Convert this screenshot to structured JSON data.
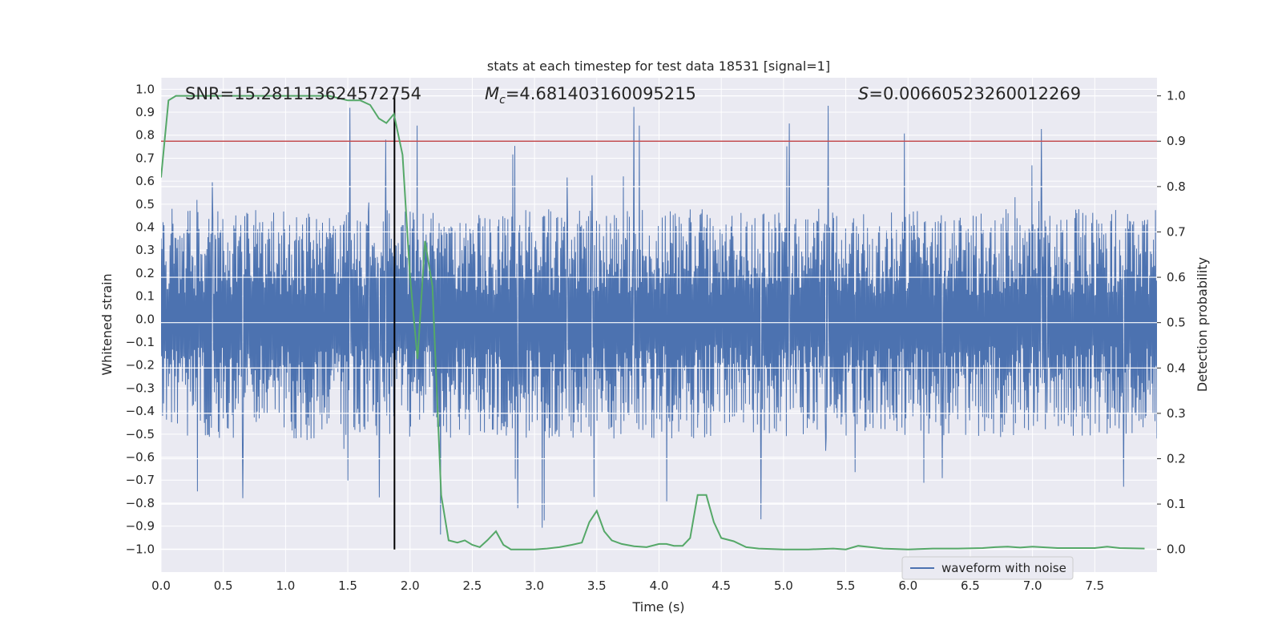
{
  "chart_data": {
    "type": "line",
    "title": "stats at each timestep for test data 18531 [signal=1]",
    "xlabel": "Time (s)",
    "ylabel_left": "Whitened strain",
    "ylabel_right": "Detection probability",
    "xlim": [
      0.0,
      8.0
    ],
    "ylim_left": [
      -1.1,
      1.05
    ],
    "ylim_right": [
      -0.05,
      1.04
    ],
    "x_ticks": [
      "0.0",
      "0.5",
      "1.0",
      "1.5",
      "2.0",
      "2.5",
      "3.0",
      "3.5",
      "4.0",
      "4.5",
      "5.0",
      "5.5",
      "6.0",
      "6.5",
      "7.0",
      "7.5"
    ],
    "y_left_ticks": [
      "1.0",
      "0.9",
      "0.8",
      "0.7",
      "0.6",
      "0.5",
      "0.4",
      "0.3",
      "0.2",
      "0.1",
      "0.0",
      "-0.1",
      "-0.2",
      "-0.3",
      "-0.4",
      "-0.5",
      "-0.6",
      "-0.7",
      "-0.8",
      "-0.9",
      "-1.0"
    ],
    "y_right_ticks": [
      "1.0",
      "0.9",
      "0.8",
      "0.7",
      "0.6",
      "0.5",
      "0.4",
      "0.3",
      "0.2",
      "0.1",
      "0.0"
    ],
    "annotations": {
      "snr": "SNR=15.281113624572754",
      "mc_symbol": "M",
      "mc_sub": "c",
      "mc_value": "=4.681403160095215",
      "s_symbol": "S",
      "s_value": "=0.00660523260012269"
    },
    "threshold_probability": 0.9,
    "marker_time": 1.875,
    "legend": [
      {
        "label": "waveform with noise",
        "color": "#4c72b0"
      }
    ],
    "waveform": {
      "name": "waveform with noise",
      "color": "#4c72b0",
      "t_start": 0.0,
      "t_end": 8.0,
      "n_samples": 2000,
      "band_max": 0.3,
      "band_min": -0.4,
      "peak_max": 0.95,
      "peak_min": -0.96
    },
    "probability_series": {
      "name": "detection probability",
      "color": "#55a868",
      "x": [
        0.0,
        0.06,
        0.12,
        0.25,
        0.5,
        0.75,
        1.0,
        1.2,
        1.35,
        1.5,
        1.6,
        1.68,
        1.75,
        1.81,
        1.87,
        1.94,
        2.0,
        2.06,
        2.12,
        2.18,
        2.25,
        2.31,
        2.38,
        2.44,
        2.5,
        2.56,
        2.62,
        2.69,
        2.75,
        2.81,
        2.9,
        3.0,
        3.1,
        3.2,
        3.3,
        3.38,
        3.44,
        3.5,
        3.56,
        3.62,
        3.7,
        3.8,
        3.9,
        4.0,
        4.06,
        4.12,
        4.19,
        4.25,
        4.31,
        4.38,
        4.44,
        4.5,
        4.6,
        4.7,
        4.8,
        5.0,
        5.2,
        5.4,
        5.5,
        5.6,
        5.7,
        5.8,
        6.0,
        6.2,
        6.4,
        6.6,
        6.7,
        6.8,
        6.9,
        7.0,
        7.2,
        7.4,
        7.5,
        7.6,
        7.7,
        7.9
      ],
      "y": [
        0.82,
        0.99,
        1.0,
        1.0,
        1.0,
        1.0,
        1.0,
        1.0,
        1.0,
        0.99,
        0.99,
        0.98,
        0.95,
        0.94,
        0.96,
        0.87,
        0.6,
        0.42,
        0.68,
        0.58,
        0.12,
        0.02,
        0.015,
        0.02,
        0.01,
        0.005,
        0.02,
        0.04,
        0.01,
        0.0,
        0.0,
        0.0,
        0.002,
        0.005,
        0.01,
        0.015,
        0.06,
        0.085,
        0.04,
        0.02,
        0.012,
        0.007,
        0.005,
        0.012,
        0.012,
        0.008,
        0.008,
        0.025,
        0.12,
        0.12,
        0.06,
        0.025,
        0.018,
        0.005,
        0.002,
        0.0,
        0.0,
        0.002,
        0.0,
        0.008,
        0.005,
        0.002,
        0.0,
        0.002,
        0.002,
        0.003,
        0.005,
        0.006,
        0.004,
        0.006,
        0.003,
        0.003,
        0.003,
        0.006,
        0.003,
        0.002
      ]
    }
  }
}
